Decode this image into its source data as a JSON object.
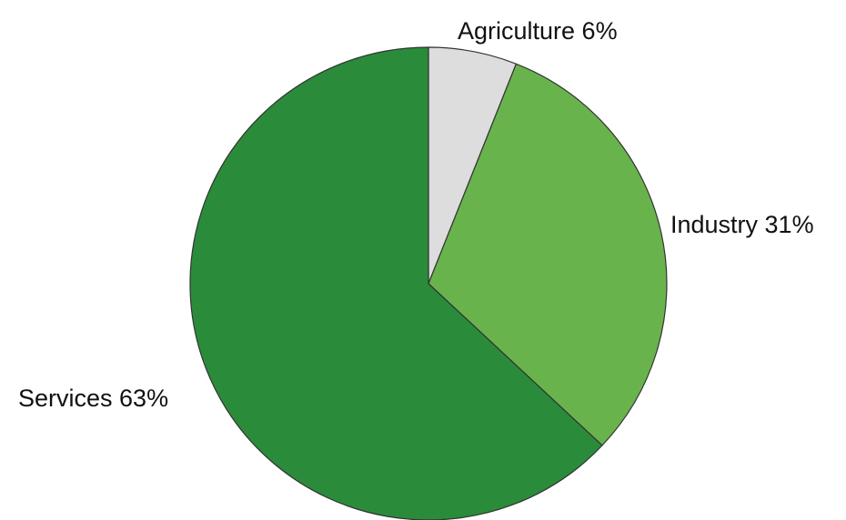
{
  "chart_data": {
    "type": "pie",
    "title": "",
    "start_angle": "12 o'clock",
    "direction": "clockwise",
    "slices": [
      {
        "label": "Agriculture",
        "value": 6,
        "display": "Agriculture  6%",
        "color": "#dddddd"
      },
      {
        "label": "Industry",
        "value": 31,
        "display": "Industry 31%",
        "color": "#69b34c"
      },
      {
        "label": "Services",
        "value": 63,
        "display": "Services 63%",
        "color": "#2a8c3a"
      }
    ]
  }
}
